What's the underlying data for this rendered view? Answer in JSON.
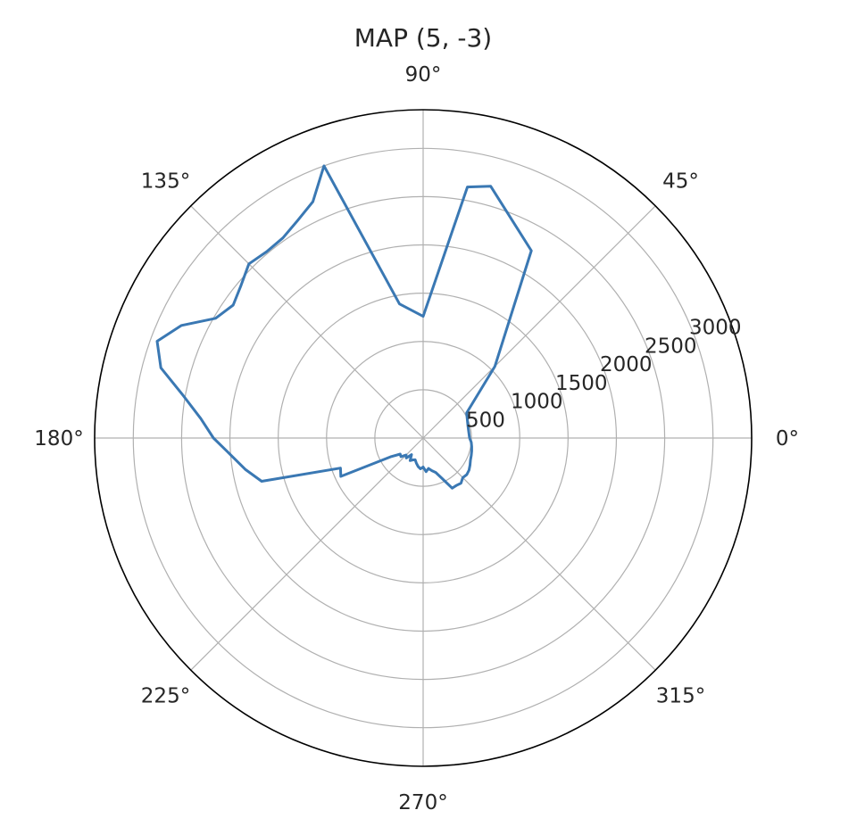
{
  "chart_data": {
    "type": "line",
    "projection": "polar",
    "title": "MAP (5, -3)",
    "theta_unit": "degrees",
    "theta_ticks": [
      0,
      45,
      90,
      135,
      180,
      225,
      270,
      315
    ],
    "theta_tick_labels": [
      "0°",
      "45°",
      "90°",
      "135°",
      "180°",
      "225°",
      "270°",
      "315°"
    ],
    "r_ticks": [
      500,
      1000,
      1500,
      2000,
      2500,
      3000
    ],
    "r_tick_labels": [
      "500",
      "1000",
      "1500",
      "2000",
      "2500",
      "3000"
    ],
    "r_grid_step": 500,
    "rlim": [
      0,
      3400
    ],
    "grid": true,
    "series": [
      {
        "color": "#3a78b3",
        "theta": [
          0,
          15,
          30,
          45,
          60,
          75,
          80,
          90,
          100,
          110,
          115,
          120,
          125,
          130,
          135,
          140,
          145,
          150,
          155,
          160,
          165,
          170,
          175,
          180,
          185,
          190,
          195,
          200,
          205,
          210,
          215,
          220,
          225,
          230,
          235,
          240,
          245,
          250,
          255,
          260,
          265,
          270,
          275,
          280,
          285,
          290,
          295,
          300,
          305,
          310,
          315,
          320,
          325,
          330,
          335,
          340,
          345,
          350,
          355,
          360
        ],
        "r": [
          480,
          480,
          520,
          1050,
          2240,
          2700,
          2640,
          1260,
          1410,
          3000,
          2700,
          2600,
          2530,
          2520,
          2550,
          2460,
          2400,
          2480,
          2760,
          2930,
          2810,
          2520,
          2310,
          2170,
          2000,
          1870,
          1730,
          910,
          940,
          390,
          290,
          300,
          250,
          270,
          210,
          270,
          250,
          240,
          270,
          300,
          320,
          300,
          350,
          320,
          350,
          380,
          460,
          600,
          600,
          610,
          580,
          590,
          580,
          560,
          540,
          530,
          520,
          510,
          500,
          480
        ]
      }
    ]
  }
}
